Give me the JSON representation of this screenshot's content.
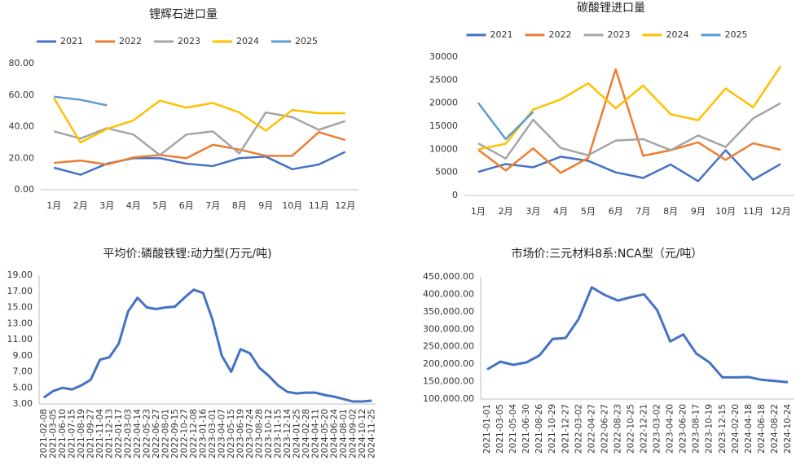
{
  "chart_data": [
    {
      "type": "line",
      "title": "锂辉石进口量",
      "categories": [
        "1月",
        "2月",
        "3月",
        "4月",
        "5月",
        "6月",
        "7月",
        "8月",
        "9月",
        "10月",
        "11月",
        "12月"
      ],
      "series": [
        {
          "name": "2021",
          "color": "#4472c4",
          "values": [
            14,
            9.5,
            16.5,
            20,
            20,
            16.5,
            15,
            20,
            21,
            13,
            16,
            24
          ]
        },
        {
          "name": "2022",
          "color": "#ed7d31",
          "values": [
            17,
            18.5,
            16,
            20.5,
            22,
            20,
            28.5,
            25.5,
            21.5,
            21.5,
            36.5,
            31.5
          ]
        },
        {
          "name": "2023",
          "color": "#a5a5a5",
          "values": [
            37,
            32.5,
            39,
            35,
            22,
            35,
            37,
            23,
            49,
            46,
            38,
            43.5
          ]
        },
        {
          "name": "2024",
          "color": "#ffc000",
          "values": [
            58,
            30,
            38.5,
            44,
            56.5,
            52,
            55,
            49,
            37.5,
            50.5,
            48.5,
            48.5
          ]
        },
        {
          "name": "2025",
          "color": "#5b9bd5",
          "values": [
            59,
            57,
            53.5,
            null,
            null,
            null,
            null,
            null,
            null,
            null,
            null,
            null
          ]
        }
      ],
      "ylim": [
        0,
        80
      ],
      "yticks": [
        {
          "value": 0,
          "label": "0.00"
        },
        {
          "value": 20,
          "label": "20.00"
        },
        {
          "value": 40,
          "label": "40.00"
        },
        {
          "value": 60,
          "label": "60.00"
        },
        {
          "value": 80,
          "label": "80.00"
        }
      ],
      "grid": false
    },
    {
      "type": "line",
      "title": "碳酸锂进口量",
      "categories": [
        "1月",
        "2月",
        "3月",
        "4月",
        "5月",
        "6月",
        "7月",
        "8月",
        "9月",
        "10月",
        "11月",
        "12月"
      ],
      "series": [
        {
          "name": "2021",
          "color": "#4472c4",
          "values": [
            5100,
            6800,
            6100,
            8400,
            7500,
            5000,
            3800,
            6700,
            3100,
            9800,
            3400,
            6800
          ]
        },
        {
          "name": "2022",
          "color": "#ed7d31",
          "values": [
            9900,
            5400,
            10200,
            4900,
            8100,
            27300,
            8600,
            9800,
            11500,
            7700,
            11300,
            9900
          ]
        },
        {
          "name": "2023",
          "color": "#a5a5a5",
          "values": [
            11300,
            8000,
            16400,
            10300,
            8700,
            11900,
            12200,
            9800,
            13000,
            10500,
            16700,
            20000
          ]
        },
        {
          "name": "2024",
          "color": "#ffc000",
          "values": [
            10000,
            11200,
            18600,
            20800,
            24300,
            18900,
            23800,
            17600,
            16300,
            23200,
            19100,
            28000
          ]
        },
        {
          "name": "2025",
          "color": "#5b9bd5",
          "values": [
            20100,
            12200,
            18100,
            null,
            null,
            null,
            null,
            null,
            null,
            null,
            null,
            null
          ]
        }
      ],
      "ylim": [
        0,
        30000
      ],
      "yticks": [
        0,
        5000,
        10000,
        15000,
        20000,
        25000,
        30000
      ],
      "grid": false
    },
    {
      "type": "line",
      "title": "平均价:磷酸铁锂:动力型(万元/吨)",
      "color": "#4472c4",
      "categories": [
        "2021-02-08",
        "2021-03-05",
        "2021-06-10",
        "2021-07-15",
        "2021-08-19",
        "2021-09-27",
        "2021-11-04",
        "2021-12-13",
        "2022-01-17",
        "2022-03-03",
        "2022-04-14",
        "2022-05-23",
        "2022-06-27",
        "2022-08-01",
        "2022-09-15",
        "2022-10-27",
        "2022-12-08",
        "2023-01-16",
        "2023-03-01",
        "2023-04-07",
        "2023-05-15",
        "2023-06-19",
        "2023-07-24",
        "2023-08-28",
        "2023-10-12",
        "2023-11-15",
        "2023-12-14",
        "2024-01-25",
        "2024-02-28",
        "2024-04-11",
        "2024-05-20",
        "2024-06-24",
        "2024-08-01",
        "2024-09-02",
        "2024-10-12",
        "2024-11-25"
      ],
      "values": [
        3.8,
        4.6,
        5.0,
        4.8,
        5.3,
        6.0,
        8.5,
        8.8,
        10.5,
        14.5,
        16.2,
        15.0,
        14.8,
        15.0,
        15.1,
        16.2,
        17.2,
        16.8,
        13.5,
        9.0,
        7.0,
        9.8,
        9.3,
        7.5,
        6.5,
        5.3,
        4.5,
        4.3,
        4.4,
        4.4,
        4.1,
        3.9,
        3.6,
        3.3,
        3.3,
        3.4
      ],
      "ylim": [
        3,
        19
      ],
      "yticks": [
        {
          "value": 3,
          "label": "3.00"
        },
        {
          "value": 5,
          "label": "5.00"
        },
        {
          "value": 7,
          "label": "7.00"
        },
        {
          "value": 9,
          "label": "9.00"
        },
        {
          "value": 11,
          "label": "11.00"
        },
        {
          "value": 13,
          "label": "13.00"
        },
        {
          "value": 15,
          "label": "15.00"
        },
        {
          "value": 17,
          "label": "17.00"
        },
        {
          "value": 19,
          "label": "19.00"
        }
      ],
      "grid": false
    },
    {
      "type": "line",
      "title": "市场价:三元材料8系:NCA型（元/吨）",
      "color": "#4472c4",
      "categories": [
        "2021-01-01",
        "2021-03-05",
        "2021-05-04",
        "2021-06-30",
        "2021-08-26",
        "2021-10-29",
        "2021-12-27",
        "2022-03-02",
        "2022-04-27",
        "2022-06-27",
        "2022-08-23",
        "2022-10-25",
        "2022-12-21",
        "2023-03-02",
        "2023-04-20",
        "2023-06-20",
        "2023-08-17",
        "2023-10-19",
        "2023-12-15",
        "2024-02-20",
        "2024-04-18",
        "2024-06-18",
        "2024-08-22",
        "2024-10-24"
      ],
      "values": [
        185000,
        207000,
        198000,
        205000,
        225000,
        272000,
        275000,
        330000,
        420000,
        398000,
        382000,
        392000,
        400000,
        355000,
        265000,
        285000,
        230000,
        205000,
        162000,
        162000,
        163000,
        155000,
        152000,
        148000
      ],
      "ylim": [
        100000,
        450000
      ],
      "yticks": [
        {
          "value": 100000,
          "label": "100,000.00"
        },
        {
          "value": 150000,
          "label": "150,000.00"
        },
        {
          "value": 200000,
          "label": "200,000.00"
        },
        {
          "value": 250000,
          "label": "250,000.00"
        },
        {
          "value": 300000,
          "label": "300,000.00"
        },
        {
          "value": 350000,
          "label": "350,000.00"
        },
        {
          "value": 400000,
          "label": "400,000.00"
        },
        {
          "value": 450000,
          "label": "450,000.00"
        }
      ],
      "grid": false
    }
  ]
}
